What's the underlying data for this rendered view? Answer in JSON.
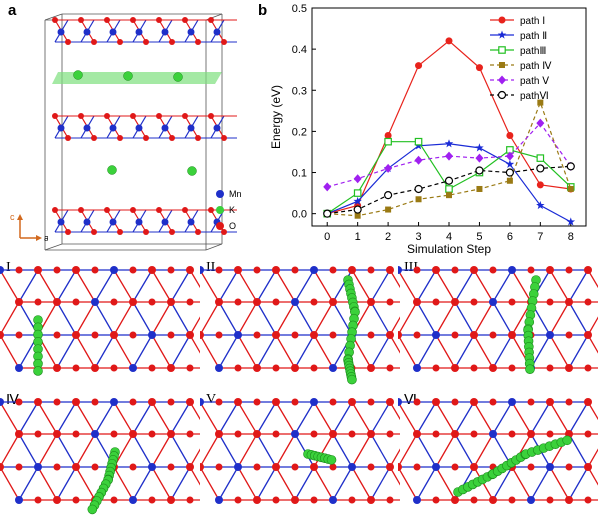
{
  "panel_a": {
    "letter": "a",
    "legend": [
      {
        "label": "Mn",
        "color": "#1f2fc9"
      },
      {
        "label": "K",
        "color": "#3bd13b"
      },
      {
        "label": "O",
        "color": "#e01818"
      }
    ],
    "axis_c": "c",
    "axis_a": "a",
    "axis_color": "#d2691e"
  },
  "panel_b": {
    "letter": "b"
  },
  "chart_data": {
    "type": "line",
    "xlabel": "Simulation Step",
    "ylabel": "Energy (eV)",
    "x": [
      0,
      1,
      2,
      3,
      4,
      5,
      6,
      7,
      8
    ],
    "xlim": [
      -0.5,
      8.5
    ],
    "ylim": [
      -0.03,
      0.5
    ],
    "yticks": [
      0.0,
      0.1,
      0.2,
      0.3,
      0.4,
      0.5
    ],
    "yticklabels": [
      "0.0",
      "0.1",
      "0.2",
      "0.3",
      "0.4",
      "0.5"
    ],
    "legend_position": "top-right",
    "series": [
      {
        "name": "path Ⅰ",
        "color": "#e8231c",
        "marker": "circle",
        "dashed": false,
        "values": [
          0.0,
          0.02,
          0.19,
          0.36,
          0.42,
          0.355,
          0.19,
          0.07,
          0.06
        ]
      },
      {
        "name": "path Ⅱ",
        "color": "#1a2bd6",
        "marker": "star",
        "dashed": false,
        "values": [
          0.0,
          0.03,
          0.11,
          0.165,
          0.17,
          0.16,
          0.12,
          0.02,
          -0.02
        ]
      },
      {
        "name": "pathⅢ",
        "color": "#22c022",
        "marker": "square-open",
        "dashed": false,
        "values": [
          0.0,
          0.05,
          0.175,
          0.175,
          0.06,
          0.1,
          0.155,
          0.135,
          0.065
        ]
      },
      {
        "name": "path Ⅳ",
        "color": "#9a7a14",
        "marker": "square",
        "dashed": true,
        "values": [
          0.0,
          -0.005,
          0.01,
          0.035,
          0.045,
          0.06,
          0.08,
          0.27,
          0.06
        ]
      },
      {
        "name": "path Ⅴ",
        "color": "#a020f0",
        "marker": "diamond",
        "dashed": true,
        "values": [
          0.065,
          0.085,
          0.11,
          0.13,
          0.14,
          0.135,
          0.14,
          0.22,
          0.115
        ]
      },
      {
        "name": "pathⅥ",
        "color": "#000000",
        "marker": "circle-open",
        "dashed": true,
        "values": [
          0.0,
          0.01,
          0.045,
          0.06,
          0.08,
          0.105,
          0.1,
          0.11,
          0.115
        ]
      }
    ]
  },
  "lattices": [
    {
      "label": "I"
    },
    {
      "label": "II"
    },
    {
      "label": "III"
    },
    {
      "label": "Ⅳ"
    },
    {
      "label": "V"
    },
    {
      "label": "Ⅵ"
    }
  ]
}
